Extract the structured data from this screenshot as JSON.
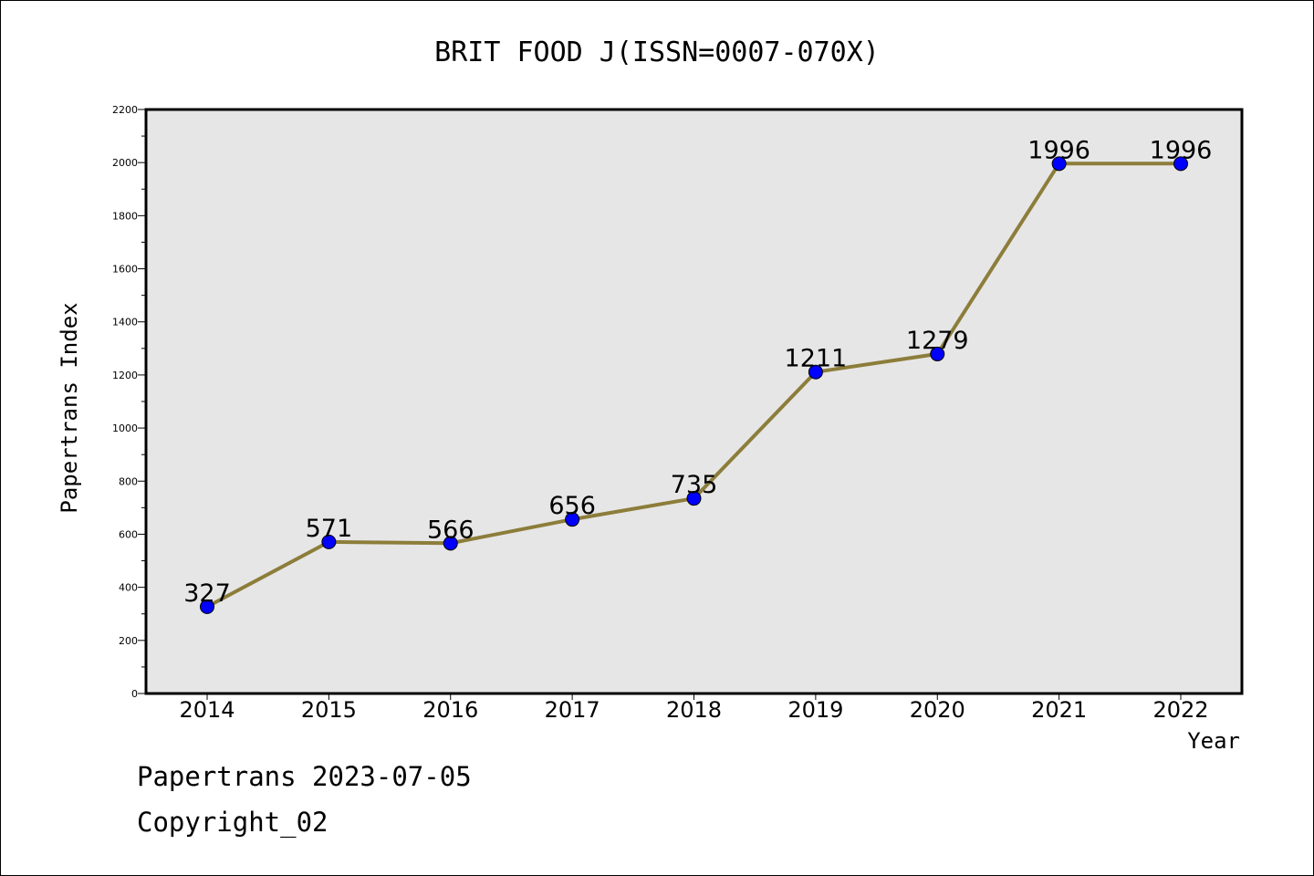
{
  "chart_data": {
    "type": "line",
    "title": "BRIT FOOD J(ISSN=0007-070X)",
    "xlabel": "Year",
    "ylabel": "Papertrans Index",
    "categories": [
      "2014",
      "2015",
      "2016",
      "2017",
      "2018",
      "2019",
      "2020",
      "2021",
      "2022"
    ],
    "series": [
      {
        "values": [
          327,
          571,
          566,
          656,
          735,
          1211,
          1279,
          1996,
          1996
        ],
        "data_labels": [
          "327",
          "571",
          "566",
          "656",
          "735",
          "1211",
          "1279",
          "1996",
          "1996"
        ],
        "line_color": "#8c7d3a",
        "marker_color": "#0000ff"
      }
    ],
    "ylim": [
      0,
      2200
    ],
    "yticks": [
      "0",
      "200",
      "400",
      "600",
      "800",
      "1000",
      "1200",
      "1400",
      "1600",
      "1800",
      "2000",
      "2200"
    ],
    "grid": false,
    "legend": "none",
    "plot_background": "#e6e6e6"
  },
  "footer": {
    "line1": "Papertrans 2023-07-05",
    "line2": "Copyright_02"
  }
}
